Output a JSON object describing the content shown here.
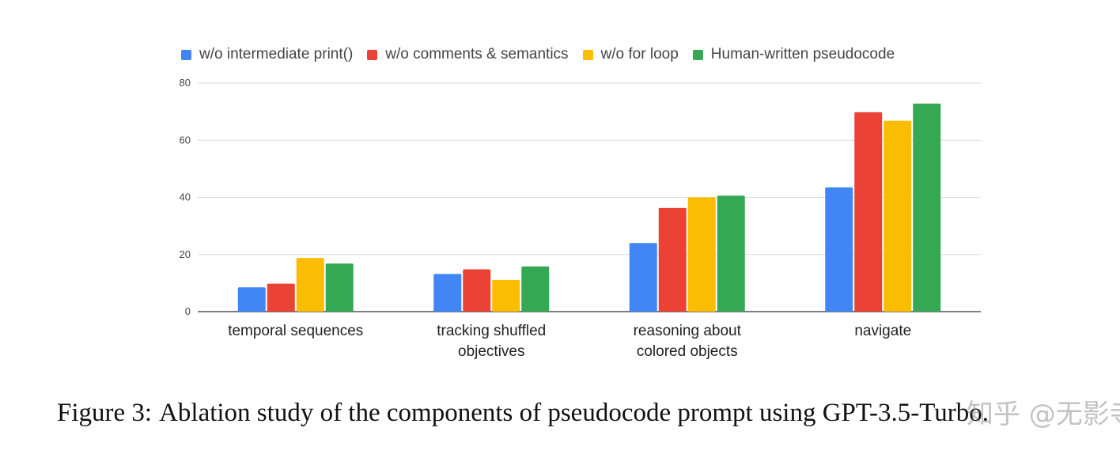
{
  "colors": {
    "series": [
      "#4285f4",
      "#ea4335",
      "#fbbc04",
      "#34a853"
    ],
    "grid": "#d9d9d9",
    "axis": "#333333",
    "tick_text": "#444444",
    "category_text": "#222222"
  },
  "chart_data": {
    "type": "bar",
    "title": "",
    "xlabel": "",
    "ylabel": "",
    "ylim": [
      0,
      80
    ],
    "yticks": [
      0,
      20,
      40,
      60,
      80
    ],
    "grid": true,
    "legend_position": "top",
    "categories": [
      [
        "temporal sequences"
      ],
      [
        "tracking shuffled",
        "objectives"
      ],
      [
        "reasoning about",
        "colored objects"
      ],
      [
        "navigate"
      ]
    ],
    "series": [
      {
        "name": "w/o intermediate print()",
        "values": [
          8.5,
          13.2,
          24.0,
          43.5
        ]
      },
      {
        "name": "w/o comments & semantics",
        "values": [
          9.8,
          14.8,
          36.3,
          69.8
        ]
      },
      {
        "name": "w/o for loop",
        "values": [
          18.8,
          11.1,
          40.0,
          66.8
        ]
      },
      {
        "name": "Human-written pseudocode",
        "values": [
          16.8,
          15.8,
          40.6,
          72.8
        ]
      }
    ]
  },
  "caption": {
    "label": "Figure 3:",
    "text": "Ablation study of the components of pseudocode prompt using GPT-3.5-Turbo."
  },
  "watermark": "知乎 @无影寺"
}
